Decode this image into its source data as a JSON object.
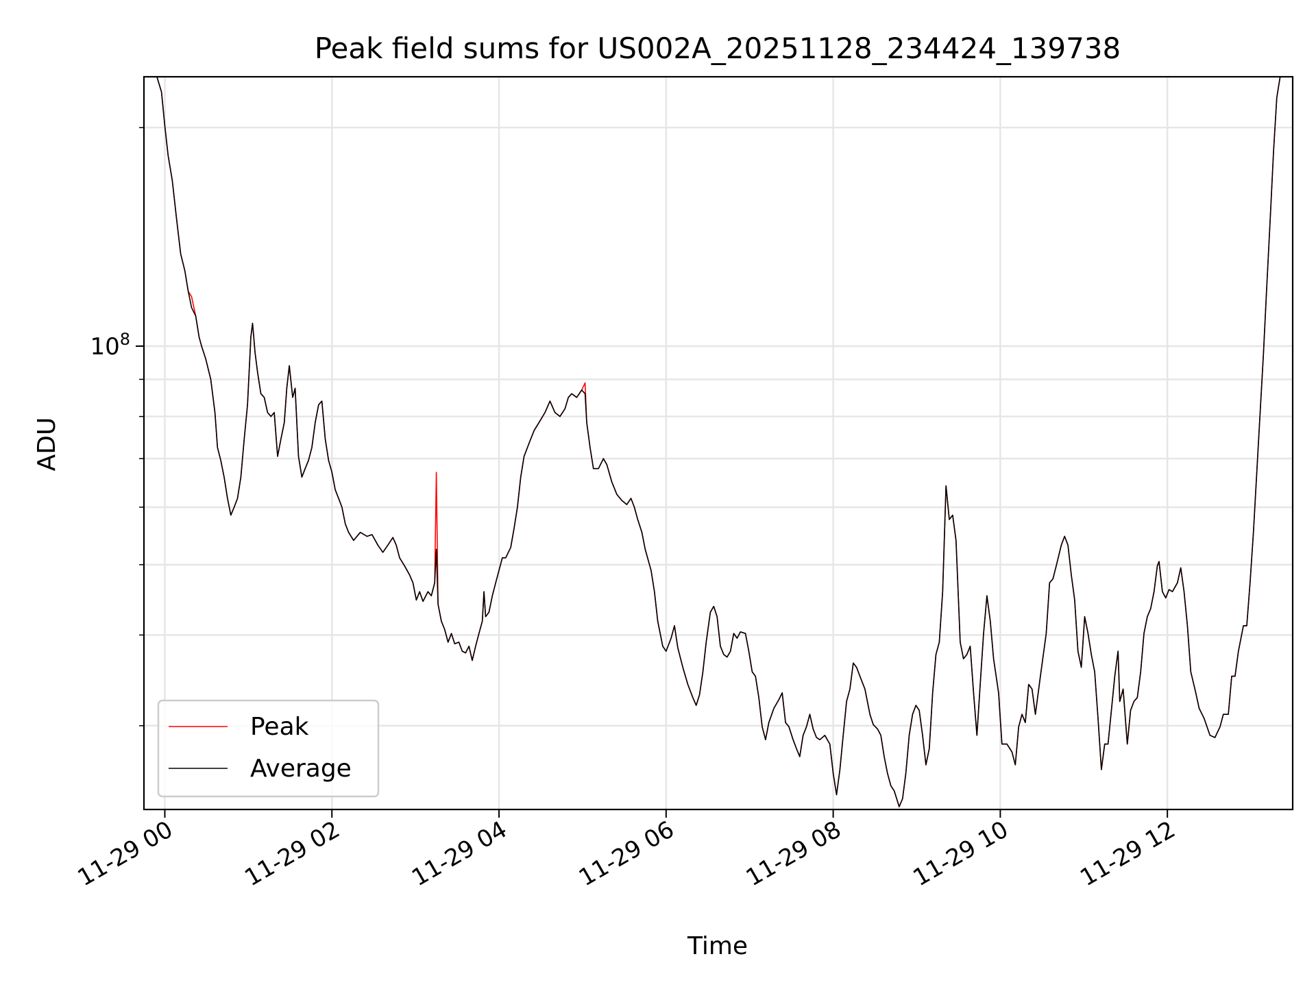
{
  "chart_data": {
    "type": "line",
    "title": "Peak field sums for US002A_20251128_234424_139738",
    "xlabel": "Time",
    "ylabel": "ADU",
    "yscale": "log",
    "ylim": [
      23000000.0,
      235000000.0
    ],
    "xlim_hours_since_11-29_00": [
      -0.25,
      13.5
    ],
    "x_ticks_hours": [
      0,
      2,
      4,
      6,
      8,
      10,
      12
    ],
    "x_tick_labels": [
      "11-29 00",
      "11-29 02",
      "11-29 04",
      "11-29 06",
      "11-29 08",
      "11-29 10",
      "11-29 12"
    ],
    "y_major_ticks": [
      100000000.0
    ],
    "y_major_tick_labels": [
      {
        "base": "10",
        "exp": "8"
      }
    ],
    "y_minor_ticks": [
      30000000.0,
      40000000.0,
      50000000.0,
      60000000.0,
      70000000.0,
      80000000.0,
      90000000.0,
      200000000.0
    ],
    "grid": true,
    "legend": {
      "placement": "lower-left",
      "entries": [
        "Peak",
        "Average"
      ]
    },
    "colors": {
      "Peak": "#ff0000",
      "Average": "#000000",
      "grid": "#e6e6e6"
    },
    "x_hours": [
      -0.25,
      -0.1,
      -0.04,
      0.0,
      0.04,
      0.09,
      0.14,
      0.19,
      0.24,
      0.28,
      0.32,
      0.37,
      0.41,
      0.44,
      0.49,
      0.55,
      0.6,
      0.63,
      0.67,
      0.71,
      0.75,
      0.79,
      0.83,
      0.87,
      0.91,
      0.95,
      0.99,
      1.03,
      1.05,
      1.08,
      1.11,
      1.15,
      1.19,
      1.23,
      1.27,
      1.31,
      1.35,
      1.39,
      1.43,
      1.46,
      1.49,
      1.53,
      1.56,
      1.6,
      1.64,
      1.68,
      1.72,
      1.76,
      1.8,
      1.84,
      1.88,
      1.92,
      1.96,
      2.0,
      2.04,
      2.08,
      2.12,
      2.16,
      2.2,
      2.26,
      2.34,
      2.42,
      2.48,
      2.55,
      2.61,
      2.67,
      2.73,
      2.77,
      2.81,
      2.87,
      2.93,
      2.97,
      3.01,
      3.05,
      3.09,
      3.15,
      3.19,
      3.23,
      3.25,
      3.27,
      3.31,
      3.35,
      3.39,
      3.43,
      3.47,
      3.52,
      3.56,
      3.6,
      3.64,
      3.68,
      3.72,
      3.76,
      3.8,
      3.82,
      3.84,
      3.88,
      3.92,
      3.96,
      4.0,
      4.04,
      4.08,
      4.14,
      4.18,
      4.22,
      4.26,
      4.3,
      4.36,
      4.42,
      4.48,
      4.55,
      4.61,
      4.67,
      4.73,
      4.79,
      4.83,
      4.87,
      4.93,
      4.99,
      5.03,
      5.05,
      5.09,
      5.13,
      5.19,
      5.25,
      5.29,
      5.35,
      5.41,
      5.47,
      5.53,
      5.58,
      5.62,
      5.66,
      5.71,
      5.75,
      5.82,
      5.86,
      5.9,
      5.96,
      6.0,
      6.06,
      6.1,
      6.14,
      6.2,
      6.26,
      6.32,
      6.36,
      6.4,
      6.44,
      6.48,
      6.53,
      6.57,
      6.61,
      6.65,
      6.69,
      6.73,
      6.77,
      6.81,
      6.85,
      6.89,
      6.95,
      6.99,
      7.03,
      7.07,
      7.11,
      7.15,
      7.19,
      7.23,
      7.29,
      7.35,
      7.39,
      7.43,
      7.47,
      7.52,
      7.56,
      7.6,
      7.64,
      7.68,
      7.72,
      7.76,
      7.8,
      7.84,
      7.9,
      7.96,
      8.0,
      8.04,
      8.08,
      8.12,
      8.16,
      8.2,
      8.24,
      8.28,
      8.32,
      8.38,
      8.44,
      8.48,
      8.53,
      8.57,
      8.61,
      8.65,
      8.69,
      8.73,
      8.79,
      8.83,
      8.87,
      8.91,
      8.95,
      8.99,
      9.03,
      9.07,
      9.11,
      9.15,
      9.19,
      9.23,
      9.27,
      9.31,
      9.35,
      9.39,
      9.43,
      9.47,
      9.52,
      9.56,
      9.6,
      9.64,
      9.68,
      9.72,
      9.76,
      9.8,
      9.84,
      9.88,
      9.92,
      9.98,
      10.02,
      10.08,
      10.14,
      10.18,
      10.22,
      10.26,
      10.3,
      10.34,
      10.38,
      10.42,
      10.48,
      10.55,
      10.59,
      10.63,
      10.67,
      10.73,
      10.77,
      10.81,
      10.85,
      10.89,
      10.93,
      10.97,
      11.01,
      11.05,
      11.09,
      11.13,
      11.17,
      11.21,
      11.25,
      11.29,
      11.33,
      11.37,
      11.41,
      11.43,
      11.47,
      11.52,
      11.56,
      11.6,
      11.64,
      11.68,
      11.72,
      11.76,
      11.8,
      11.84,
      11.88,
      11.9,
      11.94,
      11.98,
      12.02,
      12.06,
      12.12,
      12.16,
      12.2,
      12.24,
      12.28,
      12.34,
      12.38,
      12.44,
      12.51,
      12.57,
      12.63,
      12.67,
      12.73,
      12.77,
      12.81,
      12.85,
      12.91,
      12.95,
      12.99,
      13.03,
      13.07,
      13.11,
      13.15,
      13.19,
      13.23,
      13.27,
      13.31,
      13.35,
      13.42,
      13.5
    ],
    "series": [
      {
        "name": "Peak",
        "values": [
          240000000.0,
          236000000.0,
          224000000.0,
          201000000.0,
          183000000.0,
          169000000.0,
          150000000.0,
          134000000.0,
          127000000.0,
          119000000.0,
          117000000.0,
          110000000.0,
          103000000.0,
          100000000.0,
          96000000.0,
          90000000.0,
          81000000.0,
          72500000.0,
          69600000.0,
          66000000.0,
          61700000.0,
          58500000.0,
          60000000.0,
          61700000.0,
          66000000.0,
          74500000.0,
          83000000.0,
          103000000.0,
          107500000.0,
          98000000.0,
          92000000.0,
          86000000.0,
          85000000.0,
          81000000.0,
          80000000.0,
          81000000.0,
          70500000.0,
          74500000.0,
          78500000.0,
          87500000.0,
          94000000.0,
          85000000.0,
          87500000.0,
          70500000.0,
          66000000.0,
          67800000.0,
          69600000.0,
          72500000.0,
          78500000.0,
          83000000.0,
          84000000.0,
          74500000.0,
          69600000.0,
          67000000.0,
          63400000.0,
          61700000.0,
          60000000.0,
          56900000.0,
          55400000.0,
          54000000.0,
          55400000.0,
          54700000.0,
          55000000.0,
          53200000.0,
          52000000.0,
          53200000.0,
          54500000.0,
          53200000.0,
          51100000.0,
          49800000.0,
          48400000.0,
          47200000.0,
          44700000.0,
          45900000.0,
          44500000.0,
          45900000.0,
          45300000.0,
          47200000.0,
          67000000.0,
          44100000.0,
          41800000.0,
          40700000.0,
          39100000.0,
          40200000.0,
          38900000.0,
          39100000.0,
          38000000.0,
          37800000.0,
          38600000.0,
          36900000.0,
          38600000.0,
          40200000.0,
          41800000.0,
          45900000.0,
          42400000.0,
          43000000.0,
          45300000.0,
          47200000.0,
          49100000.0,
          51100000.0,
          51100000.0,
          52800000.0,
          56100000.0,
          60000000.0,
          66000000.0,
          70500000.0,
          73500000.0,
          76500000.0,
          78500000.0,
          81000000.0,
          84000000.0,
          81000000.0,
          80000000.0,
          82000000.0,
          85000000.0,
          86000000.0,
          85000000.0,
          87000000.0,
          89000000.0,
          78500000.0,
          72500000.0,
          67800000.0,
          67800000.0,
          70000000.0,
          68700000.0,
          65000000.0,
          62500000.0,
          61300000.0,
          60500000.0,
          61700000.0,
          60000000.0,
          57700000.0,
          55400000.0,
          52500000.0,
          49100000.0,
          45900000.0,
          41800000.0,
          38600000.0,
          38000000.0,
          39600000.0,
          41200000.0,
          38400000.0,
          36100000.0,
          34200000.0,
          32800000.0,
          32000000.0,
          33100000.0,
          35600000.0,
          39100000.0,
          43000000.0,
          43800000.0,
          42400000.0,
          38600000.0,
          37600000.0,
          37300000.0,
          38000000.0,
          40200000.0,
          39600000.0,
          40400000.0,
          40200000.0,
          38000000.0,
          35600000.0,
          35100000.0,
          32800000.0,
          29900000.0,
          28700000.0,
          30300000.0,
          31700000.0,
          32600000.0,
          33300000.0,
          30300000.0,
          29900000.0,
          28700000.0,
          27900000.0,
          27200000.0,
          29100000.0,
          29900000.0,
          31100000.0,
          29700000.0,
          28900000.0,
          28700000.0,
          29100000.0,
          28300000.0,
          25800000.0,
          24100000.0,
          26100000.0,
          29100000.0,
          32400000.0,
          33700000.0,
          36600000.0,
          36100000.0,
          35100000.0,
          33700000.0,
          31100000.0,
          30100000.0,
          29700000.0,
          29100000.0,
          27200000.0,
          25800000.0,
          24800000.0,
          24400000.0,
          23200000.0,
          23800000.0,
          25800000.0,
          29100000.0,
          31100000.0,
          32000000.0,
          31500000.0,
          29100000.0,
          26500000.0,
          27900000.0,
          33300000.0,
          37600000.0,
          39100000.0,
          45900000.0,
          64200000.0,
          57700000.0,
          58500000.0,
          54000000.0,
          39100000.0,
          37100000.0,
          37600000.0,
          38600000.0,
          33300000.0,
          29100000.0,
          34200000.0,
          40200000.0,
          45300000.0,
          41800000.0,
          37100000.0,
          33300000.0,
          28300000.0,
          28300000.0,
          27600000.0,
          26500000.0,
          29900000.0,
          31100000.0,
          30300000.0,
          34200000.0,
          33700000.0,
          31100000.0,
          35100000.0,
          40200000.0,
          47200000.0,
          47800000.0,
          49800000.0,
          53200000.0,
          54700000.0,
          53200000.0,
          48400000.0,
          44700000.0,
          38000000.0,
          36100000.0,
          42400000.0,
          40200000.0,
          37600000.0,
          35600000.0,
          30700000.0,
          26100000.0,
          28300000.0,
          28300000.0,
          31500000.0,
          35100000.0,
          38000000.0,
          32400000.0,
          33700000.0,
          28300000.0,
          31500000.0,
          32400000.0,
          32800000.0,
          35600000.0,
          40200000.0,
          42400000.0,
          43500000.0,
          45900000.0,
          49800000.0,
          50500000.0,
          45900000.0,
          45000000.0,
          46200000.0,
          45900000.0,
          47200000.0,
          49500000.0,
          45900000.0,
          41200000.0,
          35600000.0,
          33300000.0,
          31700000.0,
          30700000.0,
          29100000.0,
          28900000.0,
          29900000.0,
          31100000.0,
          31100000.0,
          35100000.0,
          35100000.0,
          38000000.0,
          41200000.0,
          41200000.0,
          47200000.0,
          55400000.0,
          67000000.0,
          81000000.0,
          97500000.0,
          121000000.0,
          149000000.0,
          185000000.0,
          220000000.0,
          235000000.0,
          240000000.0,
          240000000.0
        ]
      },
      {
        "name": "Average",
        "values": [
          240000000.0,
          236000000.0,
          224000000.0,
          201000000.0,
          183000000.0,
          169000000.0,
          150000000.0,
          134000000.0,
          127000000.0,
          119000000.0,
          113000000.0,
          110000000.0,
          103000000.0,
          100000000.0,
          96000000.0,
          90000000.0,
          81000000.0,
          72500000.0,
          69600000.0,
          66000000.0,
          61700000.0,
          58500000.0,
          60000000.0,
          61700000.0,
          66000000.0,
          74500000.0,
          83000000.0,
          103000000.0,
          107500000.0,
          98000000.0,
          92000000.0,
          86000000.0,
          85000000.0,
          81000000.0,
          80000000.0,
          81000000.0,
          70500000.0,
          74500000.0,
          78500000.0,
          87500000.0,
          94000000.0,
          85000000.0,
          87500000.0,
          70500000.0,
          66000000.0,
          67800000.0,
          69600000.0,
          72500000.0,
          78500000.0,
          83000000.0,
          84000000.0,
          74500000.0,
          69600000.0,
          67000000.0,
          63400000.0,
          61700000.0,
          60000000.0,
          56900000.0,
          55400000.0,
          54000000.0,
          55400000.0,
          54700000.0,
          55000000.0,
          53200000.0,
          52000000.0,
          53200000.0,
          54500000.0,
          53200000.0,
          51100000.0,
          49800000.0,
          48400000.0,
          47200000.0,
          44700000.0,
          45900000.0,
          44500000.0,
          45900000.0,
          45300000.0,
          47200000.0,
          52500000.0,
          44100000.0,
          41800000.0,
          40700000.0,
          39100000.0,
          40200000.0,
          38900000.0,
          39100000.0,
          38000000.0,
          37800000.0,
          38600000.0,
          36900000.0,
          38600000.0,
          40200000.0,
          41800000.0,
          45900000.0,
          42400000.0,
          43000000.0,
          45300000.0,
          47200000.0,
          49100000.0,
          51100000.0,
          51100000.0,
          52800000.0,
          56100000.0,
          60000000.0,
          66000000.0,
          70500000.0,
          73500000.0,
          76500000.0,
          78500000.0,
          81000000.0,
          84000000.0,
          81000000.0,
          80000000.0,
          82000000.0,
          85000000.0,
          86000000.0,
          85000000.0,
          87000000.0,
          86000000.0,
          78500000.0,
          72500000.0,
          67800000.0,
          67800000.0,
          70000000.0,
          68700000.0,
          65000000.0,
          62500000.0,
          61300000.0,
          60500000.0,
          61700000.0,
          60000000.0,
          57700000.0,
          55400000.0,
          52500000.0,
          49100000.0,
          45900000.0,
          41800000.0,
          38600000.0,
          38000000.0,
          39600000.0,
          41200000.0,
          38400000.0,
          36100000.0,
          34200000.0,
          32800000.0,
          32000000.0,
          33100000.0,
          35600000.0,
          39100000.0,
          43000000.0,
          43800000.0,
          42400000.0,
          38600000.0,
          37600000.0,
          37300000.0,
          38000000.0,
          40200000.0,
          39600000.0,
          40400000.0,
          40200000.0,
          38000000.0,
          35600000.0,
          35100000.0,
          32800000.0,
          29900000.0,
          28700000.0,
          30300000.0,
          31700000.0,
          32600000.0,
          33300000.0,
          30300000.0,
          29900000.0,
          28700000.0,
          27900000.0,
          27200000.0,
          29100000.0,
          29900000.0,
          31100000.0,
          29700000.0,
          28900000.0,
          28700000.0,
          29100000.0,
          28300000.0,
          25800000.0,
          24100000.0,
          26100000.0,
          29100000.0,
          32400000.0,
          33700000.0,
          36600000.0,
          36100000.0,
          35100000.0,
          33700000.0,
          31100000.0,
          30100000.0,
          29700000.0,
          29100000.0,
          27200000.0,
          25800000.0,
          24800000.0,
          24400000.0,
          23200000.0,
          23800000.0,
          25800000.0,
          29100000.0,
          31100000.0,
          32000000.0,
          31500000.0,
          29100000.0,
          26500000.0,
          27900000.0,
          33300000.0,
          37600000.0,
          39100000.0,
          45900000.0,
          64200000.0,
          57700000.0,
          58500000.0,
          54000000.0,
          39100000.0,
          37100000.0,
          37600000.0,
          38600000.0,
          33300000.0,
          29100000.0,
          34200000.0,
          40200000.0,
          45300000.0,
          41800000.0,
          37100000.0,
          33300000.0,
          28300000.0,
          28300000.0,
          27600000.0,
          26500000.0,
          29900000.0,
          31100000.0,
          30300000.0,
          34200000.0,
          33700000.0,
          31100000.0,
          35100000.0,
          40200000.0,
          47200000.0,
          47800000.0,
          49800000.0,
          53200000.0,
          54700000.0,
          53200000.0,
          48400000.0,
          44700000.0,
          38000000.0,
          36100000.0,
          42400000.0,
          40200000.0,
          37600000.0,
          35600000.0,
          30700000.0,
          26100000.0,
          28300000.0,
          28300000.0,
          31500000.0,
          35100000.0,
          38000000.0,
          32400000.0,
          33700000.0,
          28300000.0,
          31500000.0,
          32400000.0,
          32800000.0,
          35600000.0,
          40200000.0,
          42400000.0,
          43500000.0,
          45900000.0,
          49800000.0,
          50500000.0,
          45900000.0,
          45000000.0,
          46200000.0,
          45900000.0,
          47200000.0,
          49500000.0,
          45900000.0,
          41200000.0,
          35600000.0,
          33300000.0,
          31700000.0,
          30700000.0,
          29100000.0,
          28900000.0,
          29900000.0,
          31100000.0,
          31100000.0,
          35100000.0,
          35100000.0,
          38000000.0,
          41200000.0,
          41200000.0,
          47200000.0,
          55400000.0,
          67000000.0,
          81000000.0,
          97500000.0,
          121000000.0,
          149000000.0,
          185000000.0,
          220000000.0,
          235000000.0,
          240000000.0,
          240000000.0
        ]
      }
    ]
  }
}
